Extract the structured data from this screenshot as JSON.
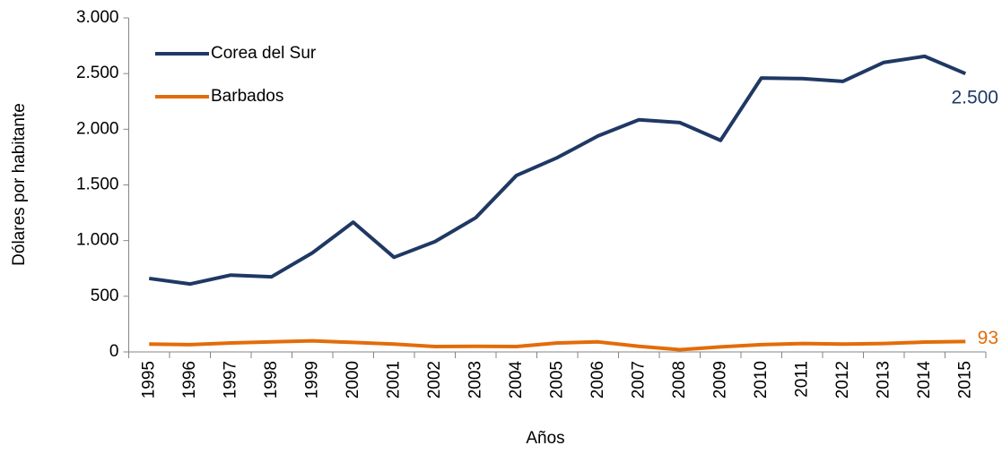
{
  "chart_data": {
    "type": "line",
    "x_label": "Años",
    "y_label": "Dólares por habitante",
    "categories": [
      "1995",
      "1996",
      "1997",
      "1998",
      "1999",
      "2000",
      "2001",
      "2002",
      "2003",
      "2004",
      "2005",
      "2006",
      "2007",
      "2008",
      "2009",
      "2010",
      "2011",
      "2012",
      "2013",
      "2014",
      "2015"
    ],
    "series": [
      {
        "name": "Corea del Sur",
        "color": "#1f3864",
        "values": [
          660,
          610,
          690,
          675,
          890,
          1165,
          850,
          990,
          1205,
          1585,
          1745,
          1940,
          2085,
          2060,
          1900,
          2460,
          2455,
          2430,
          2600,
          2655,
          2500
        ],
        "value_labels": [
          null,
          null,
          null,
          null,
          null,
          null,
          null,
          null,
          null,
          null,
          null,
          null,
          null,
          null,
          null,
          null,
          null,
          null,
          null,
          null,
          "2.500"
        ]
      },
      {
        "name": "Barbados",
        "color": "#e36c09",
        "values": [
          70,
          65,
          80,
          90,
          100,
          85,
          70,
          48,
          50,
          48,
          80,
          90,
          50,
          20,
          45,
          65,
          75,
          70,
          75,
          88,
          93
        ],
        "value_labels": [
          null,
          null,
          null,
          null,
          null,
          null,
          null,
          null,
          null,
          null,
          null,
          null,
          null,
          null,
          null,
          null,
          null,
          null,
          null,
          null,
          "93"
        ]
      }
    ],
    "ylim": [
      0,
      3000
    ],
    "yticks": [
      0,
      500,
      {
        "value": 1000,
        "label": "1.000"
      },
      {
        "value": 1500,
        "label": "1.500"
      },
      {
        "value": 2000,
        "label": "2.000"
      },
      {
        "value": 2500,
        "label": "2.500"
      },
      {
        "value": 3000,
        "label": "3.000"
      }
    ],
    "legend": "upper left"
  }
}
